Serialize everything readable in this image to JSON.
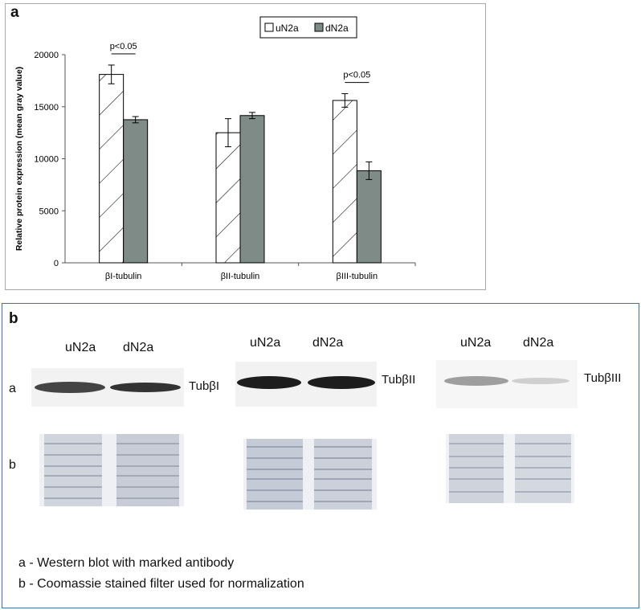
{
  "panel_a_label": "a",
  "panel_b_label": "b",
  "chart_data": {
    "type": "bar",
    "title": "",
    "xlabel": "",
    "ylabel": "Relative protein expression (mean gray value)",
    "ylim": [
      0,
      20000
    ],
    "yticks": [
      "0",
      "5000",
      "10000",
      "15000",
      "20000"
    ],
    "categories": [
      "βI-tubulin",
      "βII-tubulin",
      "βIII-tubulin"
    ],
    "series": [
      {
        "name": "uN2a",
        "values": [
          18100,
          12500,
          15600
        ],
        "errors": [
          900,
          1350,
          650
        ],
        "color": "#ffffff",
        "pattern": "hatched"
      },
      {
        "name": "dN2a",
        "values": [
          13750,
          14150,
          8850
        ],
        "errors": [
          300,
          300,
          850
        ],
        "color": "#7f8b87",
        "pattern": "solid"
      }
    ],
    "grid": false,
    "legend_position": "top-right",
    "annotations": [
      {
        "text": "p<0.05",
        "category": "βI-tubulin"
      },
      {
        "text": "p<0.05",
        "category": "βIII-tubulin"
      }
    ]
  },
  "blots": [
    {
      "lane1": "uN2a",
      "lane2": "dN2a",
      "protein": "TubβI"
    },
    {
      "lane1": "uN2a",
      "lane2": "dN2a",
      "protein": "TubβII"
    },
    {
      "lane1": "uN2a",
      "lane2": "dN2a",
      "protein": "TubβIII"
    }
  ],
  "row_labels": {
    "a": "a",
    "b": "b"
  },
  "notes": [
    "a - Western blot with marked antibody",
    "b - Coomassie stained filter used for normalization"
  ]
}
